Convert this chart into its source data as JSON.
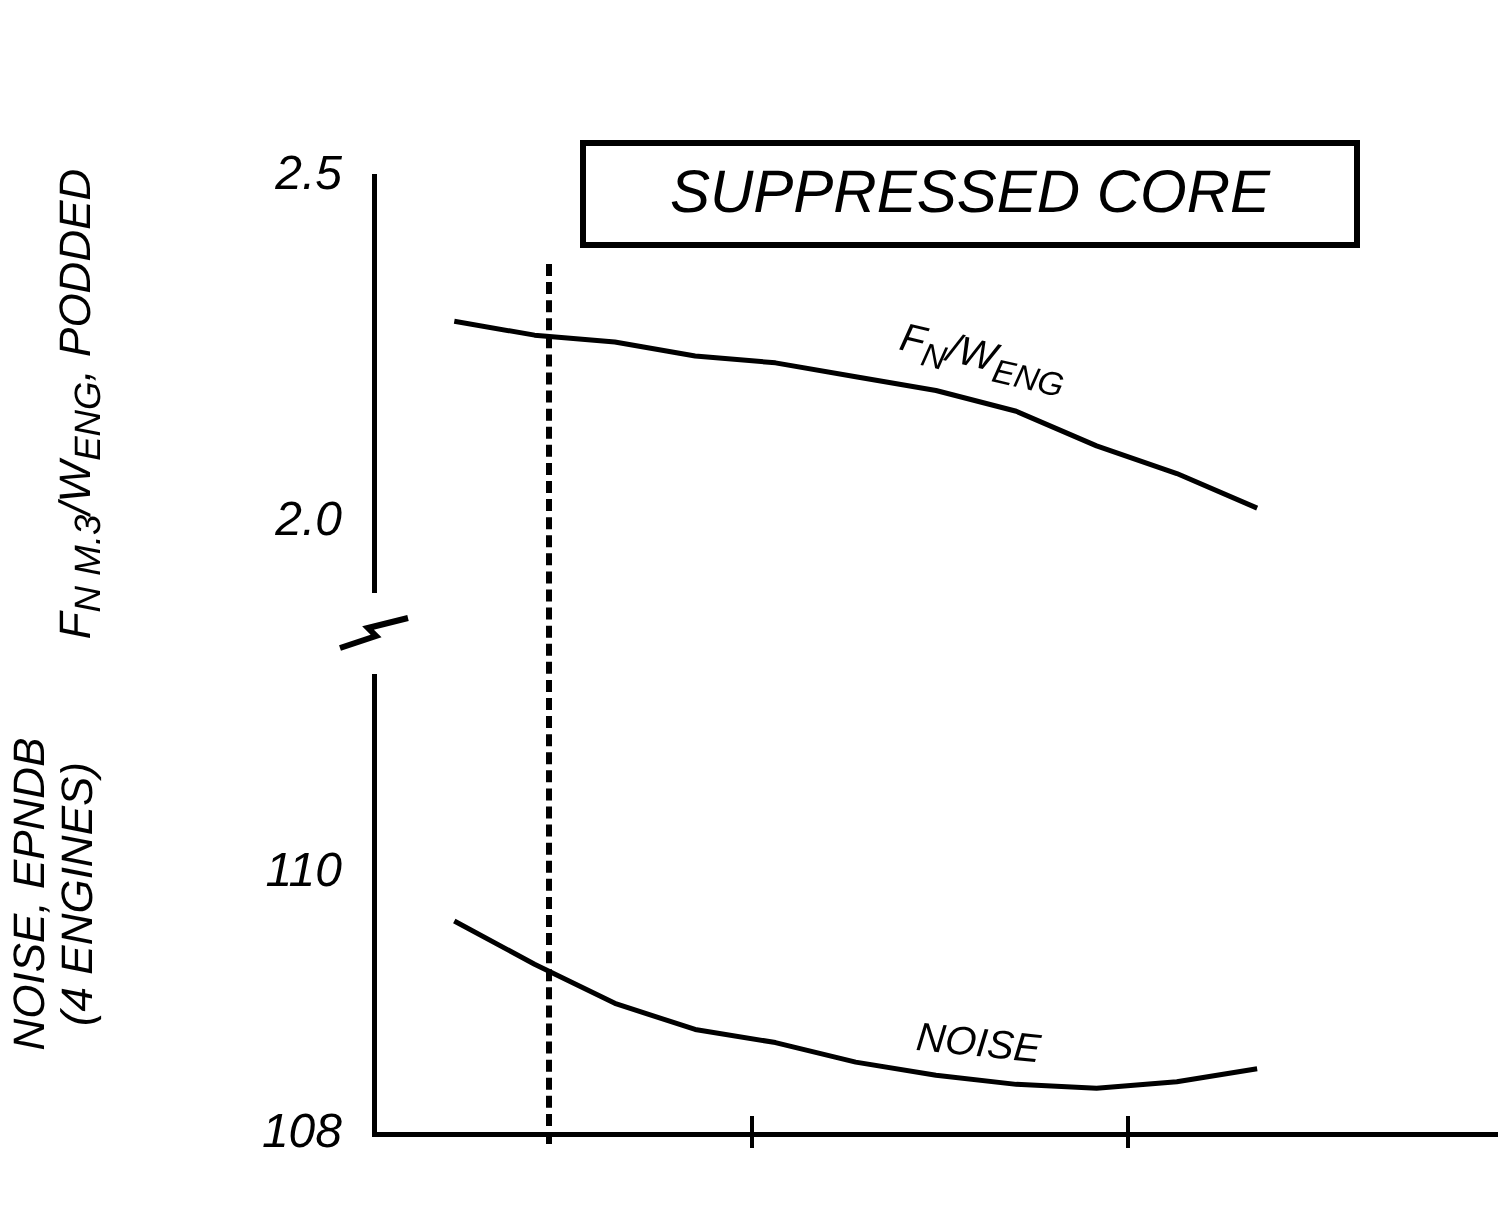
{
  "chart_data": [
    {
      "type": "line",
      "title": "SUPPRESSED CORE",
      "ylabel": "F$_{N M.3}$/W$_{ENG}$, PODDED",
      "categories": [
        null,
        null,
        null,
        null,
        null,
        null,
        null,
        null,
        null,
        null,
        null,
        null,
        null,
        null,
        null
      ],
      "series": [
        {
          "name": "F$_{N}$/W$_{ENG}$",
          "color": "#000000",
          "values": [
            null,
            2.29,
            2.27,
            2.26,
            2.24,
            2.23,
            2.21,
            2.19,
            2.16,
            2.11,
            2.07,
            2.02,
            null,
            null,
            null
          ]
        }
      ],
      "ylim": [
        1.9,
        2.5
      ],
      "yticks": [
        {
          "value": 2,
          "label": "2.0"
        },
        2.5
      ],
      "tick_labels": "y"
    },
    {
      "type": "line",
      "ylabel": "NOISE, EPNDB\n(4 ENGINES)",
      "categories": [
        null,
        null,
        null,
        null,
        null,
        null,
        null,
        null,
        null,
        null,
        null,
        null,
        null,
        null,
        null
      ],
      "series": [
        {
          "name": "NOISE",
          "color": "#000000",
          "values": [
            null,
            109.63,
            109.3,
            109.0,
            108.8,
            108.7,
            108.55,
            108.45,
            108.38,
            108.35,
            108.4,
            108.5,
            null,
            null,
            null
          ]
        }
      ],
      "ylim": [
        108,
        111.5
      ],
      "yticks": [
        108,
        110
      ],
      "tick_labels": "y"
    }
  ]
}
